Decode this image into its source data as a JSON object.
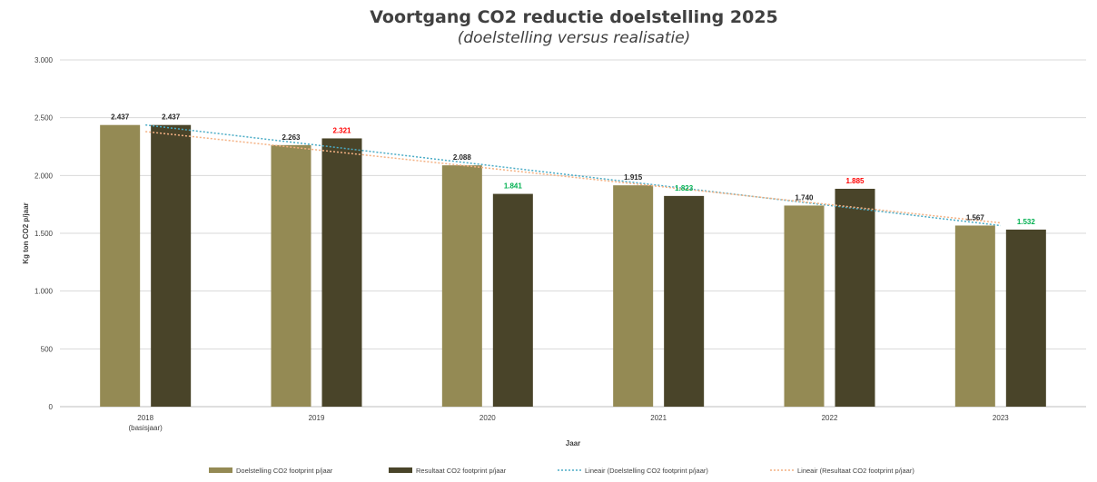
{
  "chart_data": {
    "type": "bar",
    "title": "Voortgang CO2 reductie doelstelling 2025",
    "subtitle": "(doelstelling versus realisatie)",
    "xlabel": "Jaar",
    "ylabel": "Kg ton CO2 p/jaar",
    "ylim": [
      0,
      3000
    ],
    "yticks": [
      0,
      500,
      1000,
      1500,
      2000,
      2500,
      3000
    ],
    "ytick_labels": [
      "0",
      "500",
      "1.000",
      "1.500",
      "2.000",
      "2.500",
      "3.000"
    ],
    "grid": true,
    "legend_position": "bottom",
    "categories": [
      {
        "label": "2018",
        "sublabel": "(basisjaar)"
      },
      {
        "label": "2019",
        "sublabel": ""
      },
      {
        "label": "2020",
        "sublabel": ""
      },
      {
        "label": "2021",
        "sublabel": ""
      },
      {
        "label": "2022",
        "sublabel": ""
      },
      {
        "label": "2023",
        "sublabel": ""
      }
    ],
    "series": [
      {
        "name": "Doelstelling CO2 footprint p/jaar",
        "color": "#948a54",
        "values": [
          2437,
          2263,
          2088,
          1915,
          1740,
          1567
        ],
        "labels": [
          "2.437",
          "2.263",
          "2.088",
          "1.915",
          "1.740",
          "1.567"
        ],
        "label_colors": [
          "#262626",
          "#262626",
          "#262626",
          "#262626",
          "#262626",
          "#262626"
        ]
      },
      {
        "name": "Resultaat CO2 footprint p/jaar",
        "color": "#494429",
        "values": [
          2437,
          2321,
          1841,
          1823,
          1885,
          1532
        ],
        "labels": [
          "2.437",
          "2.321",
          "1.841",
          "1.823",
          "1.885",
          "1.532"
        ],
        "label_colors": [
          "#262626",
          "#ff0000",
          "#00b050",
          "#00b050",
          "#ff0000",
          "#00b050"
        ]
      }
    ],
    "trendlines": [
      {
        "name": "Lineair (Doelstelling CO2 footprint p/jaar)",
        "color": "#4bacc6",
        "start": 2437,
        "end": 1567
      },
      {
        "name": "Lineair (Resultaat CO2 footprint p/jaar)",
        "color": "#f4b183",
        "start": 2380,
        "end": 1590
      }
    ]
  }
}
